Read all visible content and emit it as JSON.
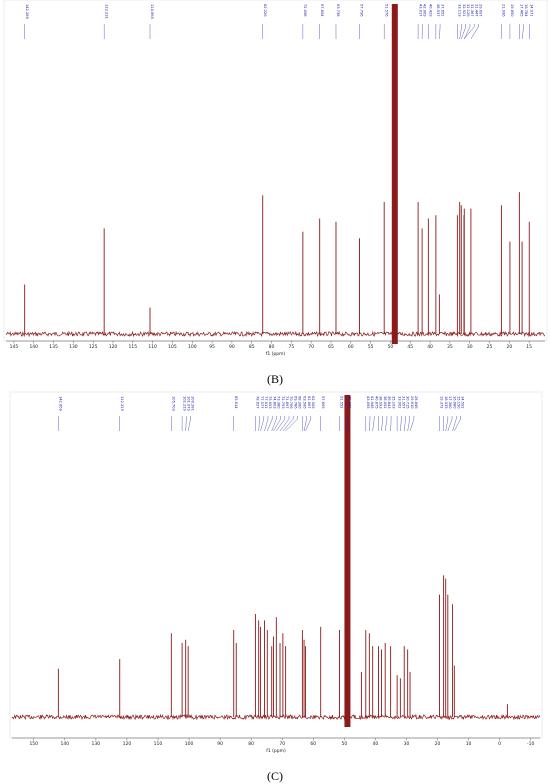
{
  "panels": [
    {
      "label": "(B)",
      "xlabel": "f1 (ppm)",
      "peak_labels": [
        {
          "text": "142.289",
          "ppm": 142.289
        },
        {
          "text": "122.231",
          "ppm": 122.231
        },
        {
          "text": "110.665",
          "ppm": 110.665
        },
        {
          "text": "82.226",
          "ppm": 82.226
        },
        {
          "text": "72.098",
          "ppm": 72.098
        },
        {
          "text": "67.854",
          "ppm": 67.854
        },
        {
          "text": "63.738",
          "ppm": 63.738
        },
        {
          "text": "57.796",
          "ppm": 57.796
        },
        {
          "text": "51.576",
          "ppm": 51.576
        },
        {
          "text": "43.017",
          "ppm": 43.017
        },
        {
          "text": "42.009",
          "ppm": 42.009
        },
        {
          "text": "40.429",
          "ppm": 40.429
        },
        {
          "text": "38.537",
          "ppm": 38.537
        },
        {
          "text": "37.652",
          "ppm": 37.652
        },
        {
          "text": "33.113",
          "ppm": 33.113
        },
        {
          "text": "32.521",
          "ppm": 32.521
        },
        {
          "text": "32.126",
          "ppm": 32.126
        },
        {
          "text": "31.367",
          "ppm": 31.367
        },
        {
          "text": "31.447",
          "ppm": 31.447
        },
        {
          "text": "29.697",
          "ppm": 29.697
        },
        {
          "text": "21.996",
          "ppm": 21.996
        },
        {
          "text": "19.850",
          "ppm": 19.85
        },
        {
          "text": "17.465",
          "ppm": 17.465
        },
        {
          "text": "16.784",
          "ppm": 16.784
        },
        {
          "text": "14.971",
          "ppm": 14.971
        }
      ]
    },
    {
      "label": "(C)",
      "xlabel": "f1 (ppm)",
      "peak_labels": [
        {
          "text": "142.069",
          "ppm": 142.069
        },
        {
          "text": "122.315",
          "ppm": 122.315
        },
        {
          "text": "105.703",
          "ppm": 105.703
        },
        {
          "text": "102.229",
          "ppm": 102.229
        },
        {
          "text": "101.079",
          "ppm": 101.079
        },
        {
          "text": "100.281",
          "ppm": 100.281
        },
        {
          "text": "85.614",
          "ppm": 85.614
        },
        {
          "text": "78.627",
          "ppm": 78.627
        },
        {
          "text": "77.577",
          "ppm": 77.577
        },
        {
          "text": "77.011",
          "ppm": 77.011
        },
        {
          "text": "75.693",
          "ppm": 75.693
        },
        {
          "text": "74.803",
          "ppm": 74.803
        },
        {
          "text": "73.380",
          "ppm": 73.38
        },
        {
          "text": "72.793",
          "ppm": 72.793
        },
        {
          "text": "71.897",
          "ppm": 71.897
        },
        {
          "text": "70.706",
          "ppm": 70.706
        },
        {
          "text": "69.786",
          "ppm": 69.786
        },
        {
          "text": "68.900",
          "ppm": 68.9
        },
        {
          "text": "63.506",
          "ppm": 63.506
        },
        {
          "text": "62.967",
          "ppm": 62.967
        },
        {
          "text": "62.509",
          "ppm": 62.509
        },
        {
          "text": "57.609",
          "ppm": 57.609
        },
        {
          "text": "51.552",
          "ppm": 51.552
        },
        {
          "text": "49.000",
          "ppm": 49.0
        },
        {
          "text": "43.095",
          "ppm": 43.095
        },
        {
          "text": "41.945",
          "ppm": 41.945
        },
        {
          "text": "40.875",
          "ppm": 40.875
        },
        {
          "text": "38.993",
          "ppm": 38.993
        },
        {
          "text": "38.052",
          "ppm": 38.052
        },
        {
          "text": "36.843",
          "ppm": 36.843
        },
        {
          "text": "35.103",
          "ppm": 35.103
        },
        {
          "text": "33.002",
          "ppm": 33.002
        },
        {
          "text": "31.957",
          "ppm": 31.957
        },
        {
          "text": "30.715",
          "ppm": 30.715
        },
        {
          "text": "29.610",
          "ppm": 29.61
        },
        {
          "text": "28.846",
          "ppm": 28.846
        },
        {
          "text": "19.372",
          "ppm": 19.372
        },
        {
          "text": "18.035",
          "ppm": 18.035
        },
        {
          "text": "17.360",
          "ppm": 17.36
        },
        {
          "text": "16.680",
          "ppm": 16.68
        },
        {
          "text": "15.150",
          "ppm": 15.15
        },
        {
          "text": "14.592",
          "ppm": 14.592
        }
      ]
    }
  ],
  "chart_data": [
    {
      "type": "line",
      "panel": "(B)",
      "xlabel": "f1 (ppm)",
      "xlim": [
        147,
        11
      ],
      "x_ticks": [
        145,
        140,
        135,
        130,
        125,
        120,
        115,
        110,
        105,
        100,
        95,
        90,
        85,
        80,
        75,
        70,
        65,
        60,
        55,
        50,
        45,
        40,
        35,
        30,
        25,
        20,
        15
      ],
      "color": "#8b1a1a",
      "solvent_peak": {
        "ppm": 48.9,
        "height": 1.0
      },
      "peaks": [
        {
          "ppm": 142.289,
          "height": 0.15
        },
        {
          "ppm": 122.231,
          "height": 0.32
        },
        {
          "ppm": 110.665,
          "height": 0.08
        },
        {
          "ppm": 82.226,
          "height": 0.42
        },
        {
          "ppm": 72.098,
          "height": 0.31
        },
        {
          "ppm": 67.854,
          "height": 0.35
        },
        {
          "ppm": 63.738,
          "height": 0.34
        },
        {
          "ppm": 57.796,
          "height": 0.29
        },
        {
          "ppm": 51.576,
          "height": 0.4
        },
        {
          "ppm": 43.017,
          "height": 0.4
        },
        {
          "ppm": 42.009,
          "height": 0.32
        },
        {
          "ppm": 40.429,
          "height": 0.35
        },
        {
          "ppm": 38.537,
          "height": 0.36
        },
        {
          "ppm": 37.652,
          "height": 0.12
        },
        {
          "ppm": 33.113,
          "height": 0.36
        },
        {
          "ppm": 32.521,
          "height": 0.4
        },
        {
          "ppm": 32.126,
          "height": 0.39
        },
        {
          "ppm": 31.447,
          "height": 0.36
        },
        {
          "ppm": 31.367,
          "height": 0.38
        },
        {
          "ppm": 29.697,
          "height": 0.38
        },
        {
          "ppm": 21.996,
          "height": 0.39
        },
        {
          "ppm": 19.85,
          "height": 0.28
        },
        {
          "ppm": 17.465,
          "height": 0.43
        },
        {
          "ppm": 16.784,
          "height": 0.28
        },
        {
          "ppm": 14.971,
          "height": 0.34
        }
      ]
    },
    {
      "type": "line",
      "panel": "(C)",
      "xlabel": "f1 (ppm)",
      "xlim": [
        157,
        -13
      ],
      "x_ticks": [
        150,
        140,
        130,
        120,
        110,
        100,
        90,
        80,
        70,
        60,
        50,
        40,
        30,
        20,
        10,
        0,
        -10
      ],
      "color": "#8b1a1a",
      "solvent_peak": {
        "ppm": 49.0,
        "height": 1.0
      },
      "peaks": [
        {
          "ppm": 142.069,
          "height": 0.15
        },
        {
          "ppm": 122.315,
          "height": 0.18
        },
        {
          "ppm": 105.703,
          "height": 0.26
        },
        {
          "ppm": 102.229,
          "height": 0.23
        },
        {
          "ppm": 101.079,
          "height": 0.24
        },
        {
          "ppm": 100.281,
          "height": 0.22
        },
        {
          "ppm": 85.614,
          "height": 0.27
        },
        {
          "ppm": 84.8,
          "height": 0.23
        },
        {
          "ppm": 78.627,
          "height": 0.32
        },
        {
          "ppm": 77.577,
          "height": 0.3
        },
        {
          "ppm": 77.011,
          "height": 0.28
        },
        {
          "ppm": 75.693,
          "height": 0.3
        },
        {
          "ppm": 74.803,
          "height": 0.27
        },
        {
          "ppm": 73.38,
          "height": 0.22
        },
        {
          "ppm": 72.793,
          "height": 0.25
        },
        {
          "ppm": 71.897,
          "height": 0.31
        },
        {
          "ppm": 70.706,
          "height": 0.23
        },
        {
          "ppm": 69.786,
          "height": 0.26
        },
        {
          "ppm": 68.9,
          "height": 0.22
        },
        {
          "ppm": 63.506,
          "height": 0.27
        },
        {
          "ppm": 62.967,
          "height": 0.24
        },
        {
          "ppm": 62.509,
          "height": 0.22
        },
        {
          "ppm": 57.609,
          "height": 0.28
        },
        {
          "ppm": 51.552,
          "height": 0.27
        },
        {
          "ppm": 44.5,
          "height": 0.14
        },
        {
          "ppm": 43.095,
          "height": 0.27
        },
        {
          "ppm": 41.945,
          "height": 0.26
        },
        {
          "ppm": 40.875,
          "height": 0.22
        },
        {
          "ppm": 38.993,
          "height": 0.22
        },
        {
          "ppm": 38.052,
          "height": 0.21
        },
        {
          "ppm": 36.843,
          "height": 0.23
        },
        {
          "ppm": 35.103,
          "height": 0.22
        },
        {
          "ppm": 33.002,
          "height": 0.13
        },
        {
          "ppm": 31.957,
          "height": 0.12
        },
        {
          "ppm": 30.715,
          "height": 0.22
        },
        {
          "ppm": 29.61,
          "height": 0.21
        },
        {
          "ppm": 28.846,
          "height": 0.14
        },
        {
          "ppm": 19.372,
          "height": 0.38
        },
        {
          "ppm": 18.035,
          "height": 0.44
        },
        {
          "ppm": 17.36,
          "height": 0.43
        },
        {
          "ppm": 16.68,
          "height": 0.38
        },
        {
          "ppm": 15.15,
          "height": 0.35
        },
        {
          "ppm": 14.592,
          "height": 0.16
        },
        {
          "ppm": -2.5,
          "height": 0.04
        }
      ]
    }
  ]
}
